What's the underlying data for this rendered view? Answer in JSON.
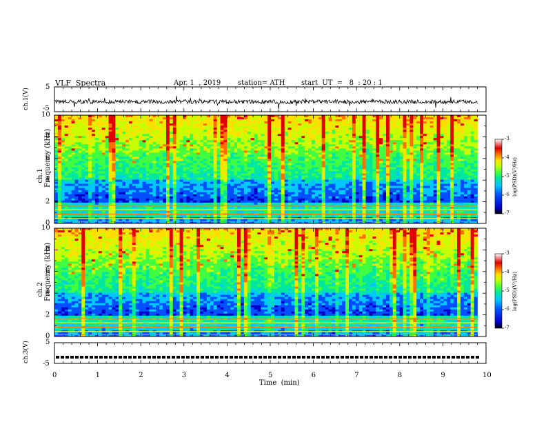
{
  "header": {
    "title": "VLF  Spectra",
    "date": "Apr. 1  , 2019",
    "station": "station= ATH",
    "start": "start  UT  =   8  : 20 : 1"
  },
  "colors": {
    "frame": "#000000",
    "background": "#ffffff",
    "colormap": [
      "#000000",
      "#0000c8",
      "#0050ff",
      "#00c8ff",
      "#00e8a0",
      "#40ff40",
      "#c8ff00",
      "#ffe000",
      "#ff7000",
      "#e00000",
      "#ffffff"
    ]
  },
  "chart_data": [
    {
      "type": "line",
      "name": "ch1-waveform",
      "ylabel": "ch.1(V)",
      "ylim": [
        -5,
        5
      ],
      "yticks": [
        "5",
        "-5"
      ],
      "xlim": [
        0,
        10
      ],
      "data_extent_min": 9.8,
      "baseline_v": -1,
      "grid": false
    },
    {
      "type": "heatmap",
      "name": "ch1-spectrogram",
      "ylabel": "ch.1\nFrequency (kHz)",
      "ylim_khz": [
        0,
        10
      ],
      "yticks": [
        "10",
        "8",
        "6",
        "4",
        "2",
        "0"
      ],
      "colorbar": {
        "label": "log(PSD)(V²/Hz)",
        "ticks": [
          "-3",
          "-4",
          "-5",
          "-6",
          "-7"
        ],
        "range": [
          -7,
          -3
        ]
      }
    },
    {
      "type": "heatmap",
      "name": "ch2-spectrogram",
      "ylabel": "ch.2\nFrequency (kHz)",
      "ylim_khz": [
        0,
        10
      ],
      "yticks": [
        "10",
        "8",
        "6",
        "4",
        "2",
        "0"
      ],
      "colorbar": {
        "label": "log(PSD)(V²/Hz)",
        "ticks": [
          "-3",
          "-4",
          "-5",
          "-6",
          "-7"
        ],
        "range": [
          -7,
          -3
        ]
      }
    },
    {
      "type": "line",
      "name": "ch3-waveform",
      "ylabel": "ch.3(V)",
      "ylim": [
        -5,
        5
      ],
      "yticks": [
        "5",
        "-5"
      ],
      "baseline_v": -2,
      "xlabel": "Time  (min)",
      "xticks": [
        "0",
        "1",
        "2",
        "3",
        "4",
        "5",
        "6",
        "7",
        "8",
        "9",
        "10"
      ],
      "xlim": [
        0,
        10
      ]
    }
  ]
}
